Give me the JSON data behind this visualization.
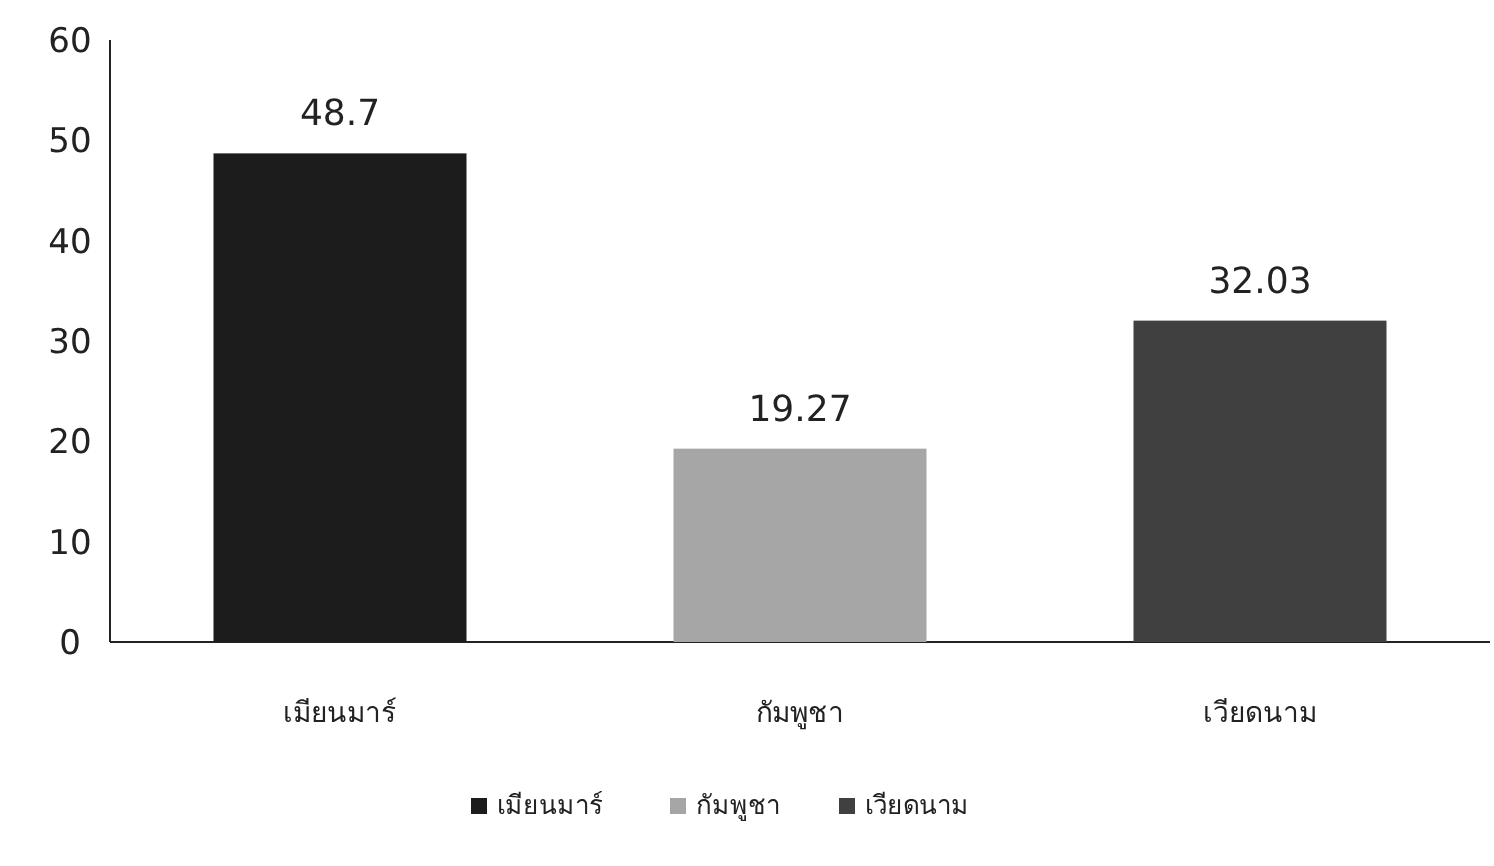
{
  "chart_data": {
    "type": "bar",
    "stacked": true,
    "categories": [
      "เมียนมาร์",
      "กัมพูชา",
      "เวียดนาม"
    ],
    "series": [
      {
        "name": "เมียนมาร์",
        "color": "#1c1c1c",
        "values": [
          48.7,
          null,
          null
        ]
      },
      {
        "name": "กัมพูชา",
        "color": "#a6a6a6",
        "values": [
          null,
          19.27,
          null
        ]
      },
      {
        "name": "เวียดนาม",
        "color": "#404040",
        "values": [
          null,
          null,
          32.03
        ]
      }
    ],
    "ylim": [
      0,
      60
    ],
    "yticks": [
      0,
      10,
      20,
      30,
      40,
      50,
      60
    ],
    "data_labels": true,
    "legend": "bottom"
  }
}
